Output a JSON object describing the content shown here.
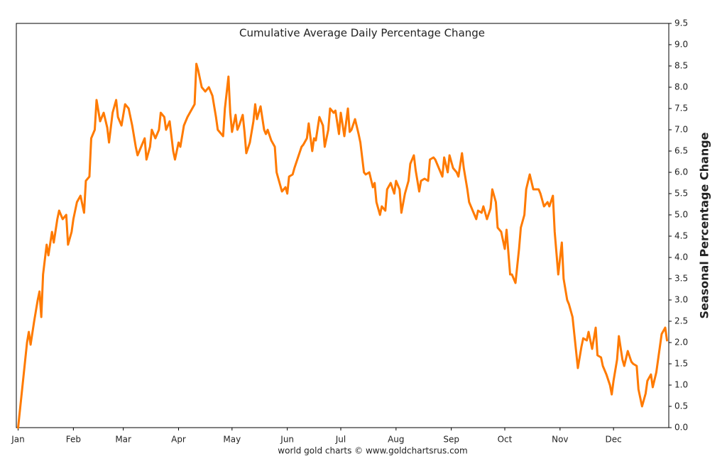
{
  "chart_data": {
    "type": "line",
    "title": "Cumulative Average Daily Percentage Change",
    "ylabel": "Seasonal Percentage Change",
    "credit": "world gold charts © www.goldchartsrus.com",
    "color": "#ff7a00",
    "grid": false,
    "y_axis_side": "right",
    "xlim": [
      0,
      366
    ],
    "xticks": [
      {
        "value": 1,
        "label": "Jan"
      },
      {
        "value": 32,
        "label": "Feb"
      },
      {
        "value": 60,
        "label": "Mar"
      },
      {
        "value": 91,
        "label": "Apr"
      },
      {
        "value": 121,
        "label": "May"
      },
      {
        "value": 152,
        "label": "Jun"
      },
      {
        "value": 182,
        "label": "Jul"
      },
      {
        "value": 213,
        "label": "Aug"
      },
      {
        "value": 244,
        "label": "Sep"
      },
      {
        "value": 274,
        "label": "Oct"
      },
      {
        "value": 305,
        "label": "Nov"
      },
      {
        "value": 335,
        "label": "Dec"
      }
    ],
    "ylim": [
      0,
      9.5
    ],
    "yticks": [
      {
        "value": 0,
        "label": "0.0"
      },
      0.5,
      {
        "value": 1,
        "label": "1.0"
      },
      1.5,
      {
        "value": 2,
        "label": "2.0"
      },
      2.5,
      {
        "value": 3,
        "label": "3.0"
      },
      3.5,
      {
        "value": 4,
        "label": "4.0"
      },
      4.5,
      {
        "value": 5,
        "label": "5.0"
      },
      5.5,
      {
        "value": 6,
        "label": "6.0"
      },
      6.5,
      {
        "value": 7,
        "label": "7.0"
      },
      7.5,
      {
        "value": 8,
        "label": "8.0"
      },
      8.5,
      {
        "value": 9,
        "label": "9.0"
      },
      9.5
    ],
    "x": [
      1,
      3,
      6,
      7,
      8,
      10,
      12,
      13,
      14,
      15,
      17,
      18,
      20,
      21,
      23,
      24,
      26,
      28,
      29,
      31,
      32,
      34,
      36,
      38,
      39,
      41,
      42,
      44,
      45,
      47,
      49,
      51,
      52,
      54,
      56,
      57,
      59,
      61,
      63,
      65,
      67,
      68,
      70,
      72,
      73,
      75,
      76,
      78,
      80,
      81,
      83,
      84,
      86,
      88,
      89,
      91,
      92,
      94,
      96,
      98,
      100,
      101,
      102,
      104,
      106,
      108,
      110,
      112,
      113,
      116,
      117,
      119,
      120,
      121,
      123,
      124,
      125,
      127,
      128,
      129,
      131,
      133,
      134,
      135,
      137,
      139,
      140,
      141,
      143,
      145,
      146,
      148,
      149,
      151,
      152,
      153,
      155,
      156,
      158,
      160,
      161,
      163,
      164,
      166,
      167,
      168,
      170,
      172,
      173,
      175,
      176,
      178,
      179,
      181,
      182,
      184,
      186,
      187,
      188,
      190,
      192,
      193,
      195,
      196,
      198,
      200,
      201,
      202,
      204,
      205,
      207,
      208,
      210,
      212,
      213,
      215,
      216,
      218,
      220,
      221,
      223,
      224,
      226,
      227,
      229,
      231,
      232,
      234,
      235,
      237,
      239,
      240,
      242,
      243,
      245,
      247,
      248,
      250,
      251,
      253,
      254,
      256,
      258,
      259,
      261,
      262,
      264,
      266,
      267,
      269,
      270,
      272,
      274,
      275,
      277,
      278,
      280,
      282,
      283,
      285,
      286,
      288,
      290,
      291,
      293,
      294,
      296,
      298,
      299,
      301,
      302,
      304,
      306,
      307,
      309,
      310,
      312,
      314,
      315,
      317,
      318,
      320,
      321,
      323,
      325,
      326,
      328,
      329,
      331,
      333,
      334,
      335,
      337,
      338,
      340,
      341,
      343,
      345,
      346,
      348,
      349,
      351,
      353,
      354,
      356,
      357,
      359,
      361,
      362,
      364,
      365
    ],
    "values": [
      0.0,
      0.8,
      2.0,
      2.25,
      1.95,
      2.5,
      3.0,
      3.2,
      2.6,
      3.6,
      4.3,
      4.05,
      4.6,
      4.35,
      4.9,
      5.1,
      4.9,
      5.0,
      4.3,
      4.6,
      4.9,
      5.3,
      5.45,
      5.05,
      5.8,
      5.9,
      6.8,
      7.0,
      7.7,
      7.2,
      7.4,
      7.05,
      6.7,
      7.4,
      7.7,
      7.3,
      7.1,
      7.6,
      7.5,
      7.1,
      6.6,
      6.4,
      6.6,
      6.8,
      6.3,
      6.6,
      7.0,
      6.8,
      7.0,
      7.4,
      7.3,
      7.0,
      7.2,
      6.5,
      6.3,
      6.7,
      6.6,
      7.1,
      7.3,
      7.45,
      7.6,
      8.55,
      8.4,
      8.0,
      7.9,
      8.0,
      7.8,
      7.3,
      7.0,
      6.85,
      7.5,
      8.25,
      7.4,
      6.95,
      7.35,
      7.0,
      7.1,
      7.35,
      6.95,
      6.45,
      6.7,
      7.2,
      7.6,
      7.25,
      7.55,
      7.0,
      6.9,
      7.0,
      6.75,
      6.6,
      6.0,
      5.7,
      5.55,
      5.65,
      5.5,
      5.9,
      5.95,
      6.1,
      6.35,
      6.6,
      6.65,
      6.8,
      7.15,
      6.5,
      6.8,
      6.75,
      7.3,
      7.1,
      6.6,
      7.0,
      7.5,
      7.4,
      7.45,
      6.9,
      7.4,
      6.85,
      7.5,
      6.95,
      7.0,
      7.25,
      6.9,
      6.7,
      6.0,
      5.95,
      6.0,
      5.65,
      5.75,
      5.3,
      5.0,
      5.2,
      5.1,
      5.6,
      5.75,
      5.5,
      5.8,
      5.6,
      5.05,
      5.5,
      5.8,
      6.2,
      6.4,
      6.05,
      5.55,
      5.8,
      5.85,
      5.8,
      6.3,
      6.35,
      6.3,
      6.1,
      5.9,
      6.35,
      6.0,
      6.4,
      6.1,
      6.0,
      5.9,
      6.45,
      6.1,
      5.6,
      5.3,
      5.1,
      4.9,
      5.1,
      5.05,
      5.2,
      4.9,
      5.15,
      5.6,
      5.3,
      4.7,
      4.6,
      4.2,
      4.65,
      3.6,
      3.6,
      3.4,
      4.2,
      4.7,
      5.0,
      5.6,
      5.95,
      5.6,
      5.6,
      5.6,
      5.5,
      5.2,
      5.3,
      5.2,
      5.45,
      4.6,
      3.6,
      4.35,
      3.5,
      3.0,
      2.9,
      2.6,
      1.8,
      1.4,
      1.9,
      2.1,
      2.05,
      2.25,
      1.85,
      2.35,
      1.7,
      1.65,
      1.45,
      1.25,
      1.0,
      0.78,
      1.1,
      1.6,
      2.15,
      1.6,
      1.45,
      1.8,
      1.55,
      1.5,
      1.45,
      0.9,
      0.5,
      0.8,
      1.1,
      1.25,
      0.95,
      1.3,
      1.9,
      2.2,
      2.35,
      2.05
    ]
  }
}
